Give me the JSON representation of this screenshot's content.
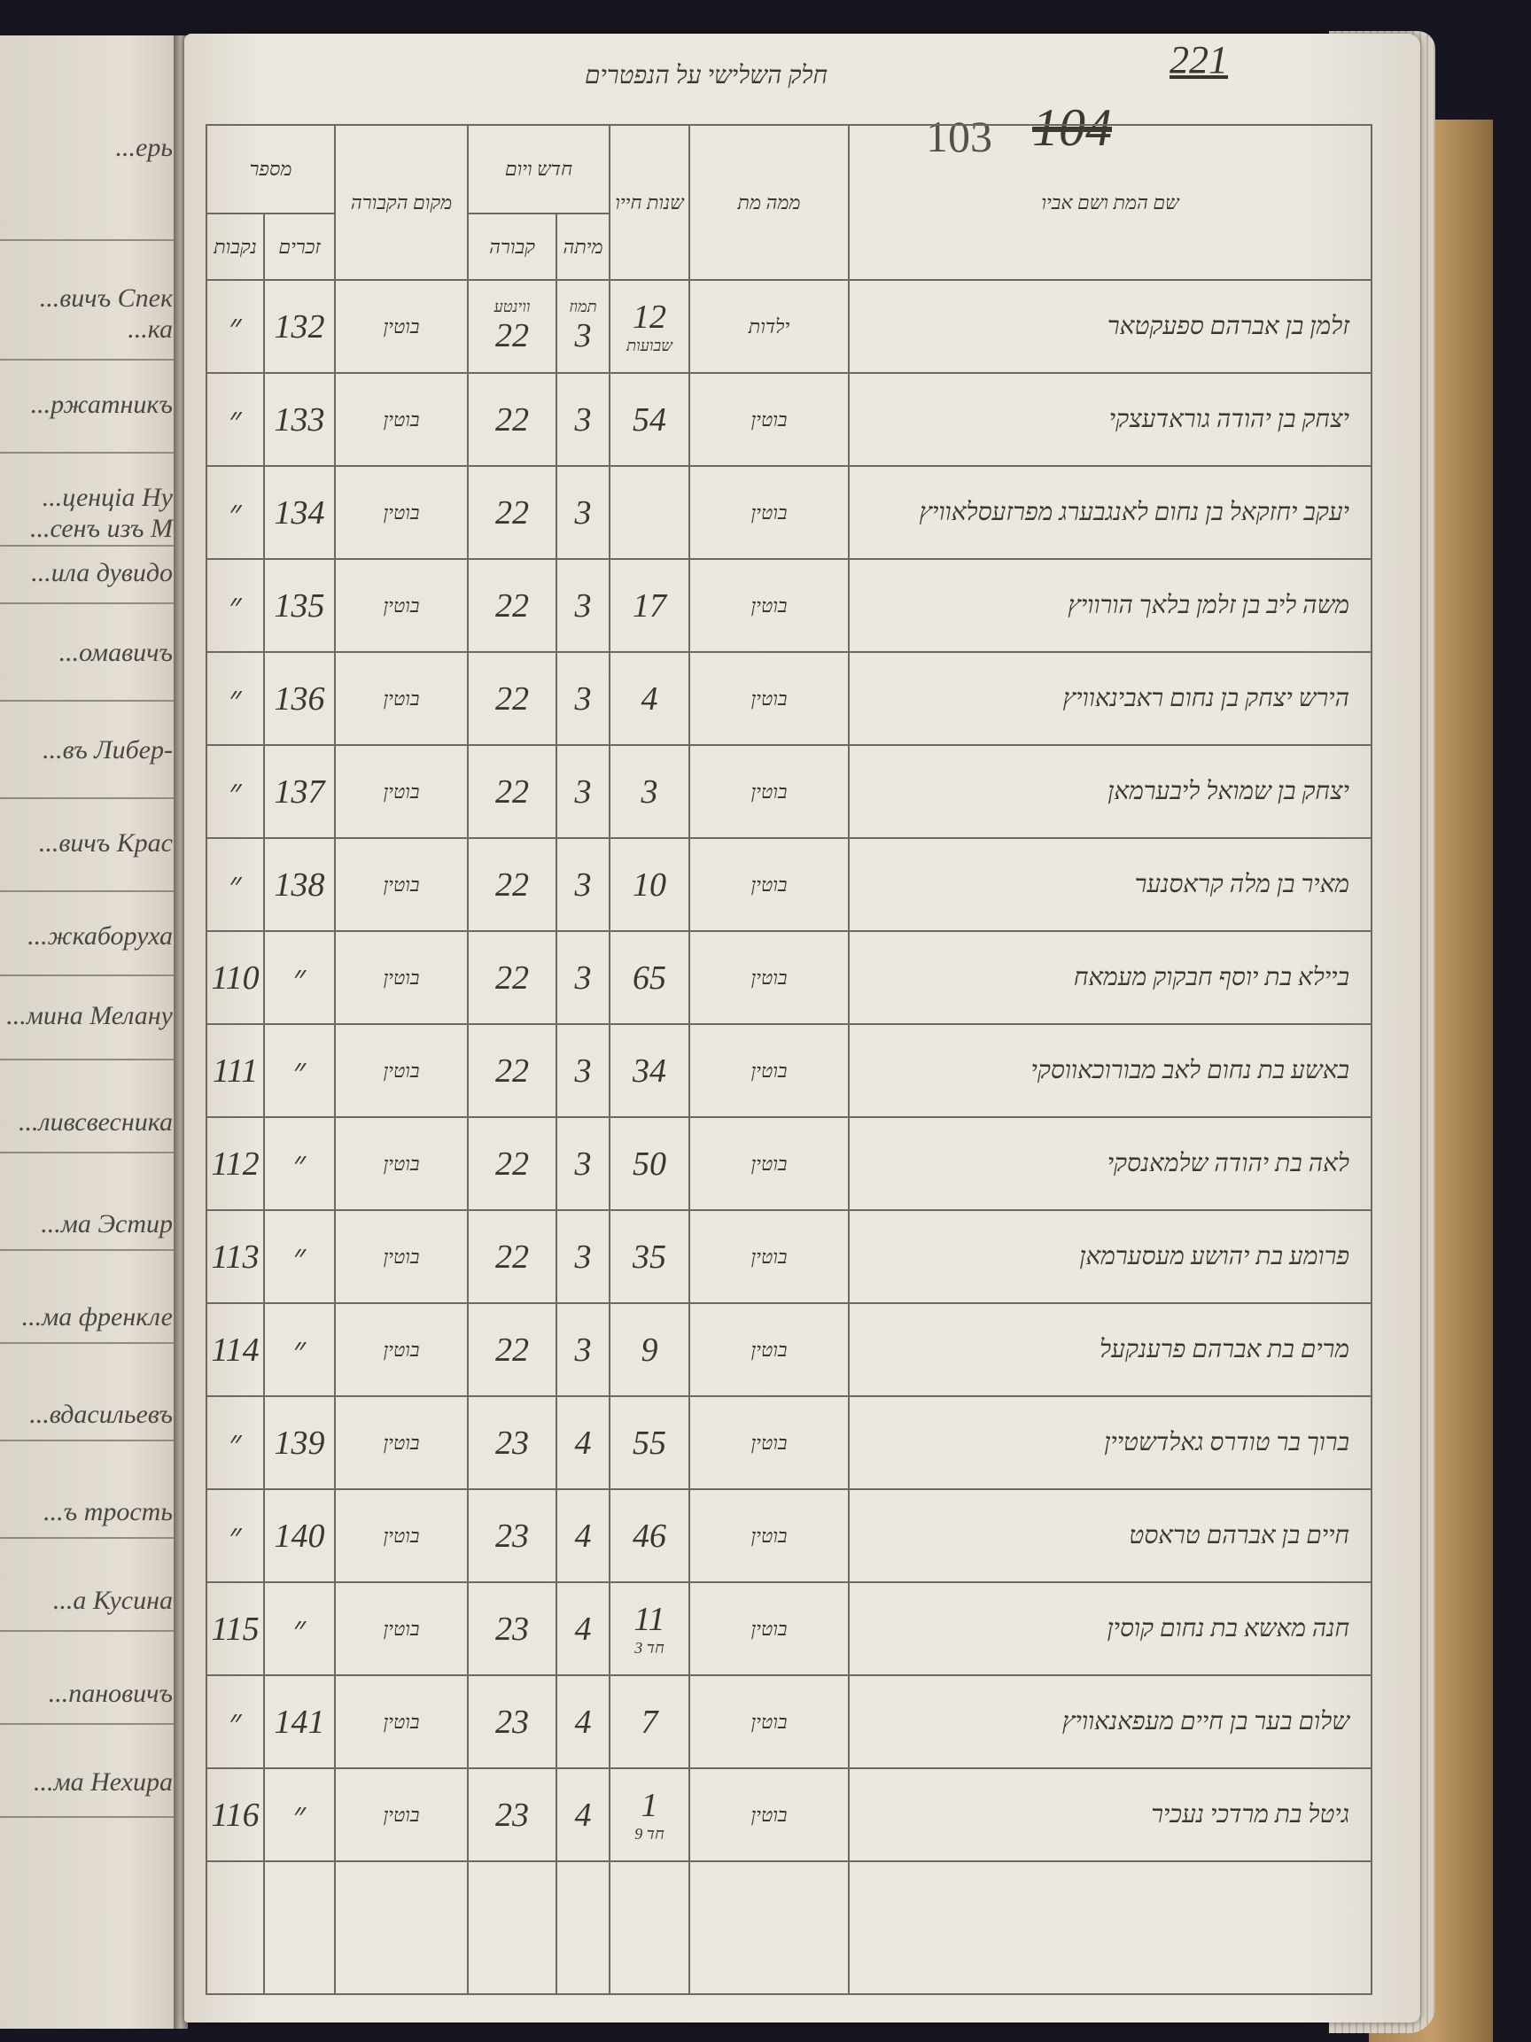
{
  "left_page": {
    "fragments": [
      "...ерь",
      "...вичъ Спек",
      "...ка",
      "...ржатникъ",
      "...ценціа Ну",
      "...сенъ изъ М",
      "...ила дувидо",
      "...омавичъ",
      "...въ Либер-",
      "...вичъ Крас",
      "...жкаборуха",
      "...мина Мелану",
      "...ливсвесника",
      "...ма Эстир",
      "...ма френкле",
      "...вдасильевъ",
      "...ъ трость",
      "...а Кусина",
      "...пановичъ",
      "...ма Нехира"
    ]
  },
  "page": {
    "title": "חלק השלישי על הנפטרים",
    "page_number": "221",
    "old_number": "103",
    "crossed_number": "104"
  },
  "headers": {
    "number": "מספר",
    "females": "נקבות",
    "males": "זכרים",
    "place": "מקום הקבורה",
    "date": "חדש ויום",
    "date_burial": "קבורה",
    "date_death": "מיתה",
    "age": "שנות חייו",
    "cause": "ממה מת",
    "name": "שם המת ושם אביו"
  },
  "rows": [
    {
      "female": "״",
      "male": "132",
      "place": "בוטין",
      "day": "22",
      "day_note": "ווינטע",
      "month": "3",
      "month_note": "תמוז",
      "age": "12",
      "age_note": "שבועות",
      "cause": "ילדות",
      "name": "זלמן בן אברהם ספעקטאר"
    },
    {
      "female": "״",
      "male": "133",
      "place": "בוטין",
      "day": "22",
      "month": "3",
      "age": "54",
      "cause": "בוטין",
      "name": "יצחק בן יהודה גוראדעצקי"
    },
    {
      "female": "״",
      "male": "134",
      "place": "בוטין",
      "day": "22",
      "month": "3",
      "age": "",
      "cause": "בוטין",
      "name": "יעקב יחזקאל בן נחום לאנגבערג מפרזעסלאוויץ"
    },
    {
      "female": "״",
      "male": "135",
      "place": "בוטין",
      "day": "22",
      "month": "3",
      "age": "17",
      "cause": "בוטין",
      "name": "משה ליב בן זלמן בלאך הורוויץ"
    },
    {
      "female": "״",
      "male": "136",
      "place": "בוטין",
      "day": "22",
      "month": "3",
      "age": "4",
      "cause": "בוטין",
      "name": "הירש יצחק בן נחום ראבינאוויץ"
    },
    {
      "female": "״",
      "male": "137",
      "place": "בוטין",
      "day": "22",
      "month": "3",
      "age": "3",
      "cause": "בוטין",
      "name": "יצחק בן שמואל ליבערמאן"
    },
    {
      "female": "״",
      "male": "138",
      "place": "בוטין",
      "day": "22",
      "month": "3",
      "age": "10",
      "cause": "בוטין",
      "name": "מאיר בן מלה קראסנער"
    },
    {
      "female": "110",
      "male": "״",
      "place": "בוטין",
      "day": "22",
      "month": "3",
      "age": "65",
      "cause": "בוטין",
      "name": "ביילא בת יוסף חבקוק מעמאח"
    },
    {
      "female": "111",
      "male": "״",
      "place": "בוטין",
      "day": "22",
      "month": "3",
      "age": "34",
      "cause": "בוטין",
      "name": "באשע בת נחום לאב מבורוכאווסקי"
    },
    {
      "female": "112",
      "male": "״",
      "place": "בוטין",
      "day": "22",
      "month": "3",
      "age": "50",
      "cause": "בוטין",
      "name": "לאה בת יהודה שלמאנסקי"
    },
    {
      "female": "113",
      "male": "״",
      "place": "בוטין",
      "day": "22",
      "month": "3",
      "age": "35",
      "cause": "בוטין",
      "name": "פרומע בת יהושע מעסערמאן"
    },
    {
      "female": "114",
      "male": "״",
      "place": "בוטין",
      "day": "22",
      "month": "3",
      "age": "9",
      "cause": "בוטין",
      "name": "מרים בת אברהם פרענקעל"
    },
    {
      "female": "״",
      "male": "139",
      "place": "בוטין",
      "day": "23",
      "month": "4",
      "age": "55",
      "cause": "בוטין",
      "name": "ברוך בר טודרס גאלדשטיין"
    },
    {
      "female": "״",
      "male": "140",
      "place": "בוטין",
      "day": "23",
      "month": "4",
      "age": "46",
      "cause": "בוטין",
      "name": "חיים בן אברהם טראסט"
    },
    {
      "female": "115",
      "male": "״",
      "place": "בוטין",
      "day": "23",
      "month": "4",
      "age": "11",
      "age_note": "חד 3",
      "cause": "בוטין",
      "name": "חנה מאשא בת נחום קוסין"
    },
    {
      "female": "״",
      "male": "141",
      "place": "בוטין",
      "day": "23",
      "month": "4",
      "age": "7",
      "cause": "בוטין",
      "name": "שלום בער בן חיים מעפאנאוויץ"
    },
    {
      "female": "116",
      "male": "״",
      "place": "בוטין",
      "day": "23",
      "month": "4",
      "age": "1",
      "age_note": "חד 9",
      "cause": "בוטין",
      "name": "גיטל בת מרדכי נעכיר"
    }
  ]
}
